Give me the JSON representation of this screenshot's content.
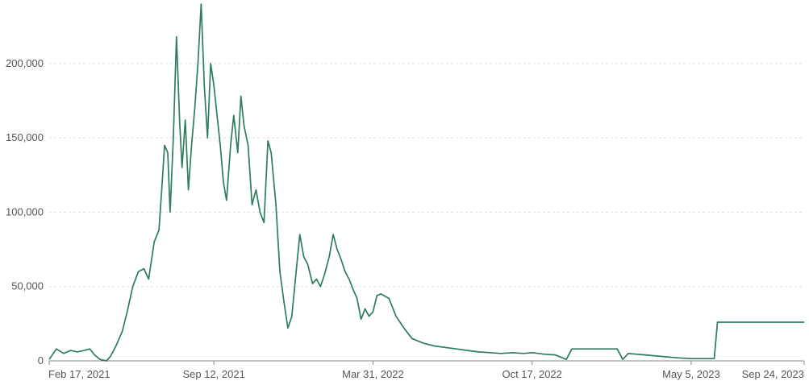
{
  "chart_data": {
    "type": "line",
    "title": "",
    "xlabel": "",
    "ylabel": "",
    "grid": true,
    "ylim": [
      0,
      240000
    ],
    "y_ticks": [
      0,
      50000,
      100000,
      150000,
      200000
    ],
    "y_tick_labels": [
      "0",
      "50,000",
      "100,000",
      "150,000",
      "200,000"
    ],
    "xlim": [
      "2021-02-17",
      "2023-09-24"
    ],
    "x_ticks": [
      "2021-02-17",
      "2021-09-12",
      "2022-03-31",
      "2022-10-17",
      "2023-05-05",
      "2023-09-24"
    ],
    "x_tick_labels": [
      "Feb 17, 2021",
      "Sep 12, 2021",
      "Mar 31, 2022",
      "Oct 17, 2022",
      "May 5, 2023",
      "Sep 24, 2023"
    ],
    "series": [
      {
        "color": "#2e7d5b",
        "points": [
          [
            "2021-02-17",
            1000
          ],
          [
            "2021-02-26",
            8000
          ],
          [
            "2021-03-07",
            5000
          ],
          [
            "2021-03-16",
            7000
          ],
          [
            "2021-03-24",
            6000
          ],
          [
            "2021-04-02",
            7000
          ],
          [
            "2021-04-09",
            8000
          ],
          [
            "2021-04-15",
            4000
          ],
          [
            "2021-04-22",
            1000
          ],
          [
            "2021-04-30",
            0
          ],
          [
            "2021-05-05",
            3000
          ],
          [
            "2021-05-12",
            10000
          ],
          [
            "2021-05-20",
            20000
          ],
          [
            "2021-05-26",
            33000
          ],
          [
            "2021-06-02",
            50000
          ],
          [
            "2021-06-09",
            60000
          ],
          [
            "2021-06-16",
            62000
          ],
          [
            "2021-06-22",
            55000
          ],
          [
            "2021-06-29",
            80000
          ],
          [
            "2021-07-05",
            88000
          ],
          [
            "2021-07-09",
            120000
          ],
          [
            "2021-07-12",
            145000
          ],
          [
            "2021-07-16",
            140000
          ],
          [
            "2021-07-19",
            100000
          ],
          [
            "2021-07-23",
            150000
          ],
          [
            "2021-07-27",
            218000
          ],
          [
            "2021-07-31",
            160000
          ],
          [
            "2021-08-03",
            130000
          ],
          [
            "2021-08-07",
            162000
          ],
          [
            "2021-08-11",
            115000
          ],
          [
            "2021-08-15",
            145000
          ],
          [
            "2021-08-19",
            170000
          ],
          [
            "2021-08-23",
            200000
          ],
          [
            "2021-08-27",
            240000
          ],
          [
            "2021-08-31",
            185000
          ],
          [
            "2021-09-04",
            150000
          ],
          [
            "2021-09-08",
            200000
          ],
          [
            "2021-09-12",
            185000
          ],
          [
            "2021-09-16",
            165000
          ],
          [
            "2021-09-20",
            145000
          ],
          [
            "2021-09-24",
            120000
          ],
          [
            "2021-09-28",
            108000
          ],
          [
            "2021-10-03",
            145000
          ],
          [
            "2021-10-07",
            165000
          ],
          [
            "2021-10-12",
            140000
          ],
          [
            "2021-10-16",
            178000
          ],
          [
            "2021-10-20",
            158000
          ],
          [
            "2021-10-25",
            145000
          ],
          [
            "2021-10-30",
            105000
          ],
          [
            "2021-11-04",
            115000
          ],
          [
            "2021-11-09",
            100000
          ],
          [
            "2021-11-14",
            93000
          ],
          [
            "2021-11-19",
            148000
          ],
          [
            "2021-11-23",
            140000
          ],
          [
            "2021-11-29",
            105000
          ],
          [
            "2021-12-04",
            60000
          ],
          [
            "2021-12-09",
            40000
          ],
          [
            "2021-12-14",
            22000
          ],
          [
            "2021-12-19",
            30000
          ],
          [
            "2021-12-24",
            58000
          ],
          [
            "2021-12-29",
            85000
          ],
          [
            "2022-01-03",
            70000
          ],
          [
            "2022-01-08",
            65000
          ],
          [
            "2022-01-14",
            52000
          ],
          [
            "2022-01-19",
            55000
          ],
          [
            "2022-01-24",
            50000
          ],
          [
            "2022-01-29",
            58000
          ],
          [
            "2022-02-04",
            70000
          ],
          [
            "2022-02-09",
            85000
          ],
          [
            "2022-02-14",
            75000
          ],
          [
            "2022-02-19",
            68000
          ],
          [
            "2022-02-24",
            60000
          ],
          [
            "2022-03-01",
            55000
          ],
          [
            "2022-03-06",
            48000
          ],
          [
            "2022-03-11",
            42000
          ],
          [
            "2022-03-16",
            28000
          ],
          [
            "2022-03-21",
            35000
          ],
          [
            "2022-03-26",
            30000
          ],
          [
            "2022-03-31",
            33000
          ],
          [
            "2022-04-05",
            44000
          ],
          [
            "2022-04-10",
            45000
          ],
          [
            "2022-04-20",
            42000
          ],
          [
            "2022-04-29",
            30000
          ],
          [
            "2022-05-09",
            22000
          ],
          [
            "2022-05-19",
            15000
          ],
          [
            "2022-06-02",
            12000
          ],
          [
            "2022-06-16",
            10000
          ],
          [
            "2022-06-30",
            9000
          ],
          [
            "2022-07-14",
            8000
          ],
          [
            "2022-07-28",
            7000
          ],
          [
            "2022-08-11",
            6000
          ],
          [
            "2022-08-25",
            5500
          ],
          [
            "2022-09-08",
            5000
          ],
          [
            "2022-09-22",
            5500
          ],
          [
            "2022-10-06",
            5000
          ],
          [
            "2022-10-17",
            5500
          ],
          [
            "2022-11-01",
            4500
          ],
          [
            "2022-11-15",
            4000
          ],
          [
            "2022-11-29",
            1000
          ],
          [
            "2022-12-06",
            8000
          ],
          [
            "2023-01-03",
            8000
          ],
          [
            "2023-02-01",
            8000
          ],
          [
            "2023-02-08",
            1000
          ],
          [
            "2023-02-15",
            5000
          ],
          [
            "2023-03-08",
            4000
          ],
          [
            "2023-03-29",
            3000
          ],
          [
            "2023-04-19",
            2000
          ],
          [
            "2023-05-05",
            1500
          ],
          [
            "2023-06-03",
            1500
          ],
          [
            "2023-06-07",
            26000
          ],
          [
            "2023-07-15",
            26000
          ],
          [
            "2023-08-20",
            26000
          ],
          [
            "2023-09-24",
            26000
          ]
        ]
      }
    ]
  }
}
